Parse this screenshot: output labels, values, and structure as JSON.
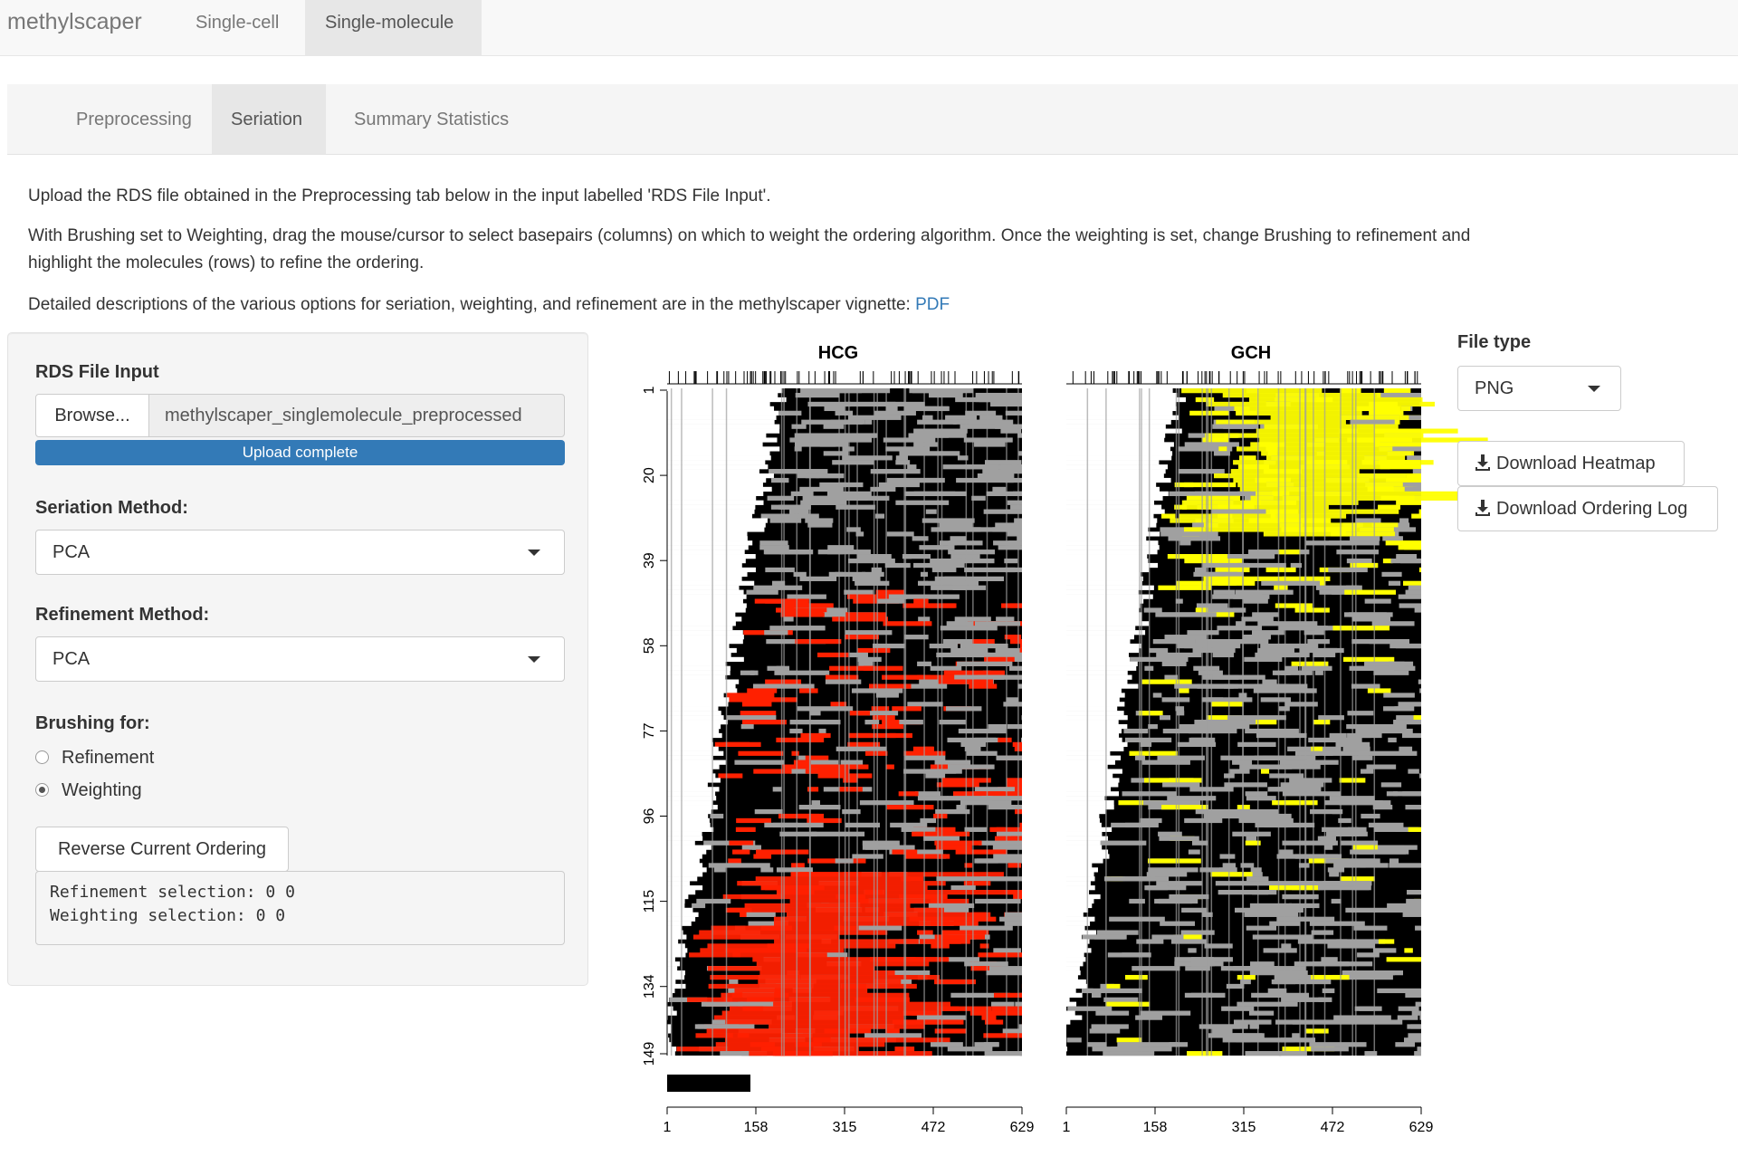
{
  "navbar": {
    "brand": "methylscaper",
    "items": [
      {
        "label": "Single-cell",
        "active": false
      },
      {
        "label": "Single-molecule",
        "active": true
      }
    ]
  },
  "subtabs": [
    {
      "label": "Preprocessing",
      "active": false
    },
    {
      "label": "Seriation",
      "active": true
    },
    {
      "label": "Summary Statistics",
      "active": false
    }
  ],
  "intro": {
    "p1": "Upload the RDS file obtained in the Preprocessing tab below in the input labelled 'RDS File Input'.",
    "p2_line1": "With Brushing set to Weighting, drag the mouse/cursor to select basepairs (columns) on which to weight the ordering algorithm. Once the weighting is set, change Brushing to refinement and",
    "p2_line2": "highlight the molecules (rows) to refine the ordering.",
    "p3": "Detailed descriptions of the various options for seriation, weighting, and refinement are in the methylscaper vignette: ",
    "p3_link": "PDF"
  },
  "sidebar": {
    "rds_label": "RDS File Input",
    "browse_label": "Browse...",
    "file_name": "methylscaper_singlemolecule_preprocessed",
    "progress_label": "Upload complete",
    "progress_percent": 100,
    "seriation_label": "Seriation Method:",
    "seriation_value": "PCA",
    "refinement_label": "Refinement Method:",
    "refinement_value": "PCA",
    "brushing_label": "Brushing for:",
    "brushing_options": [
      {
        "label": "Refinement",
        "checked": false
      },
      {
        "label": "Weighting",
        "checked": true
      }
    ],
    "reverse_button": "Reverse Current Ordering",
    "selection_text": "Refinement selection: 0 0\nWeighting selection: 0 0"
  },
  "plot": {
    "hcg_title": "HCG",
    "gch_title": "GCH",
    "y_ticks": [
      "1",
      "20",
      "39",
      "58",
      "77",
      "96",
      "115",
      "134",
      "149"
    ],
    "x_ticks": [
      "1",
      "158",
      "315",
      "472",
      "629"
    ],
    "colors": {
      "hcg_methylated": "#ff2000",
      "gch_methylated": "#ffff00",
      "unmethylated": "#000000",
      "not_covered": "#a0a0a0",
      "background": "#ffffff"
    }
  },
  "right_panel": {
    "file_type_label": "File type",
    "file_type_value": "PNG",
    "download_heatmap": "Download Heatmap",
    "download_log": "Download Ordering Log"
  }
}
